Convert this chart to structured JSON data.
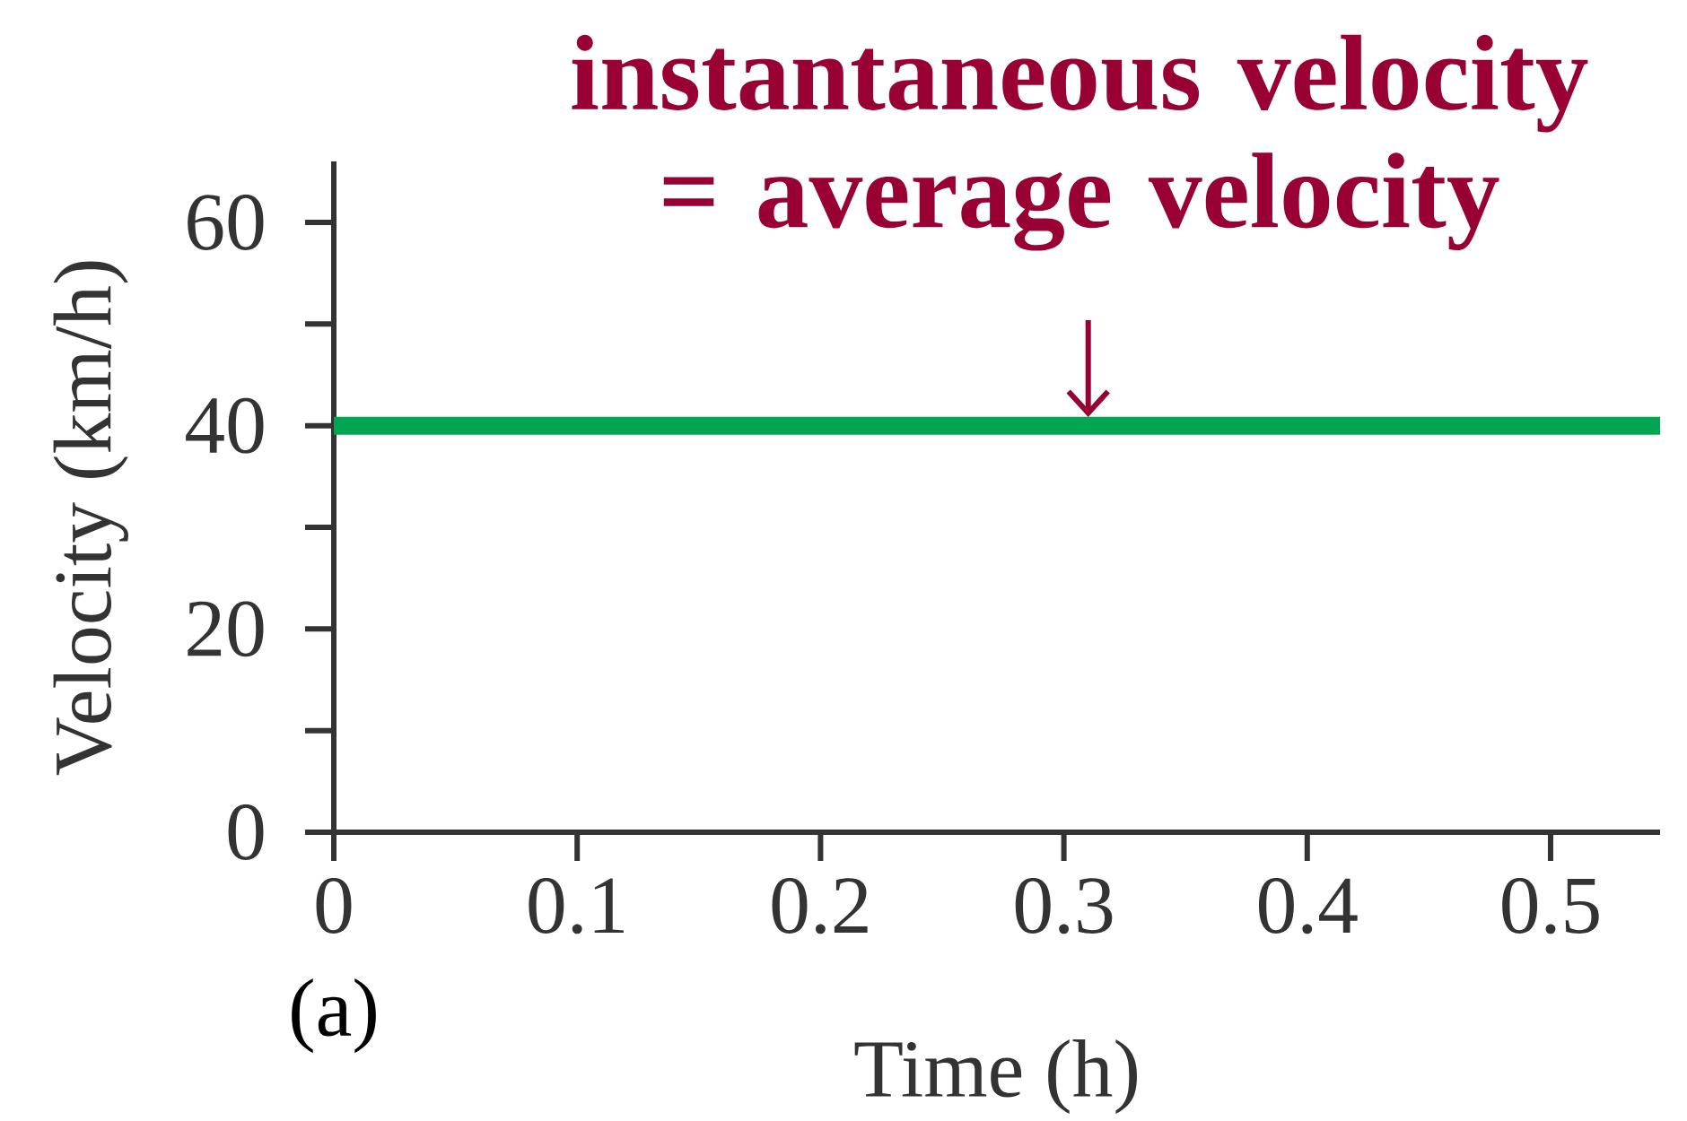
{
  "chart_data": {
    "type": "line",
    "xlabel": "Time (h)",
    "ylabel": "Velocity (km/h)",
    "x": [
      0,
      0.545
    ],
    "series": [
      {
        "color": "#00a651",
        "values": [
          40,
          40
        ]
      }
    ],
    "xlim": [
      0,
      0.545
    ],
    "ylim": [
      0,
      66
    ],
    "xticks": [
      0,
      0.1,
      0.2,
      0.3,
      0.4,
      0.5
    ],
    "yticks": [
      0,
      20,
      40,
      60
    ],
    "annotations": [
      {
        "text": "instantaneous velocity = average velocity",
        "x": 0.31,
        "y": 40
      },
      "(a)"
    ]
  }
}
